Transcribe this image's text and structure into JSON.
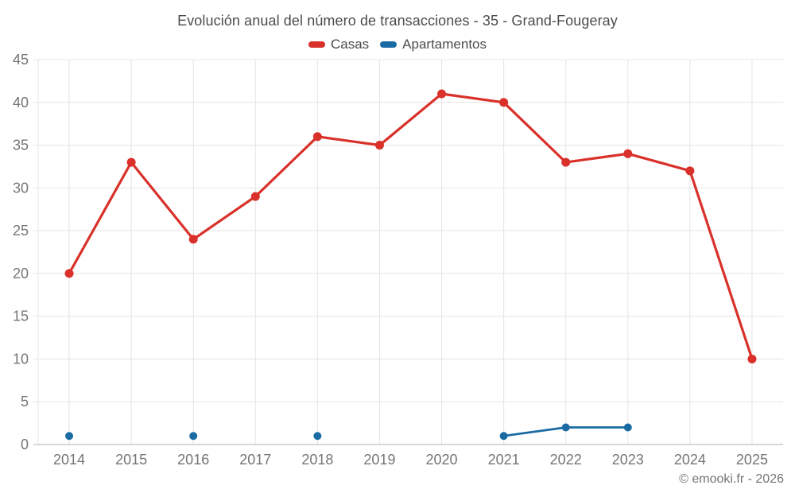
{
  "header": {
    "title": "Evolución anual del número de transacciones - 35 - Grand-Fougeray"
  },
  "footer": {
    "credit": "© emooki.fr - 2026"
  },
  "chart_data": {
    "type": "line",
    "title": "Evolución anual del número de transacciones - 35 - Grand-Fougeray",
    "categories": [
      "2014",
      "2015",
      "2016",
      "2017",
      "2018",
      "2019",
      "2020",
      "2021",
      "2022",
      "2023",
      "2024",
      "2025"
    ],
    "series": [
      {
        "name": "Casas",
        "color": "#d9312a",
        "values": [
          20,
          33,
          24,
          29,
          36,
          35,
          41,
          40,
          33,
          34,
          32,
          10
        ]
      },
      {
        "name": "Apartamentos",
        "color": "#1a6ba4",
        "values": [
          1,
          null,
          1,
          null,
          1,
          null,
          null,
          1,
          2,
          2,
          null,
          null
        ]
      }
    ],
    "xlabel": "",
    "ylabel": "",
    "ylim": [
      0,
      45
    ],
    "yticks": [
      0,
      5,
      10,
      15,
      20,
      25,
      30,
      35,
      40,
      45
    ],
    "grid": true,
    "legend_position": "top",
    "colors": {
      "grid_line": "#e4e4e4",
      "axis_line": "#b0b0b0",
      "tick_label": "#757575",
      "background": "#ffffff"
    }
  }
}
